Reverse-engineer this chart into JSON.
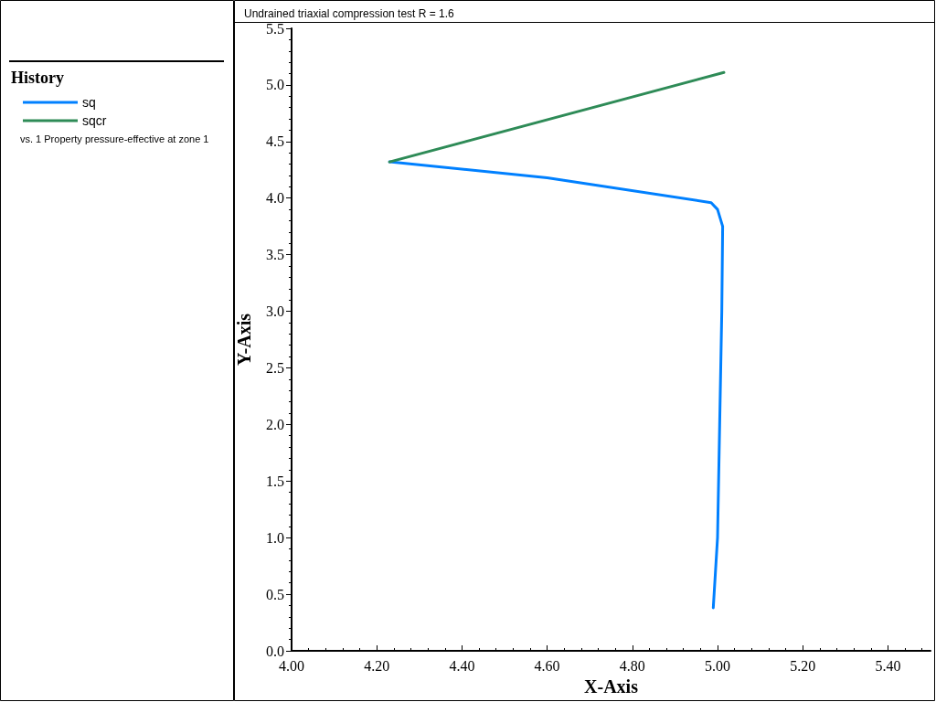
{
  "chart_data": {
    "type": "line",
    "title": "Undrained triaxial compression test R = 1.6",
    "xlabel": "X-Axis",
    "ylabel": "Y-Axis",
    "legend_title": "History",
    "annotations": [
      "vs. 1 Property pressure-effective at zone 1"
    ],
    "series": [
      {
        "name": "sq",
        "color": "#0080ff",
        "x": [
          4.99,
          5.0,
          5.005,
          5.01,
          5.012,
          5.0,
          4.985,
          4.6,
          4.23
        ],
        "values": [
          0.38,
          1.0,
          2.0,
          3.0,
          3.75,
          3.9,
          3.96,
          4.18,
          4.32
        ]
      },
      {
        "name": "sqcr",
        "color": "#2e8b57",
        "x": [
          4.23,
          5.015
        ],
        "values": [
          4.32,
          5.11
        ]
      }
    ],
    "xlim": [
      4.0,
      5.5
    ],
    "xticks": [
      {
        "value": 4.0,
        "label": "4.00"
      },
      {
        "value": 4.2,
        "label": "4.20"
      },
      {
        "value": 4.4,
        "label": "4.40"
      },
      {
        "value": 4.6,
        "label": "4.60"
      },
      {
        "value": 4.8,
        "label": "4.80"
      },
      {
        "value": 5.0,
        "label": "5.00"
      },
      {
        "value": 5.2,
        "label": "5.20"
      },
      {
        "value": 5.4,
        "label": "5.40"
      }
    ],
    "ylim": [
      0,
      5.5
    ],
    "yticks": [
      {
        "value": 0,
        "label": "0.0"
      },
      {
        "value": 0.5,
        "label": "0.5"
      },
      {
        "value": 1,
        "label": "1.0"
      },
      {
        "value": 1.5,
        "label": "1.5"
      },
      {
        "value": 2,
        "label": "2.0"
      },
      {
        "value": 2.5,
        "label": "2.5"
      },
      {
        "value": 3,
        "label": "3.0"
      },
      {
        "value": 3.5,
        "label": "3.5"
      },
      {
        "value": 4,
        "label": "4.0"
      },
      {
        "value": 4.5,
        "label": "4.5"
      },
      {
        "value": 5,
        "label": "5.0"
      },
      {
        "value": 5.5,
        "label": "5.5"
      }
    ],
    "grid": false,
    "legend": "left",
    "marker": "none",
    "line_style": "solid"
  }
}
